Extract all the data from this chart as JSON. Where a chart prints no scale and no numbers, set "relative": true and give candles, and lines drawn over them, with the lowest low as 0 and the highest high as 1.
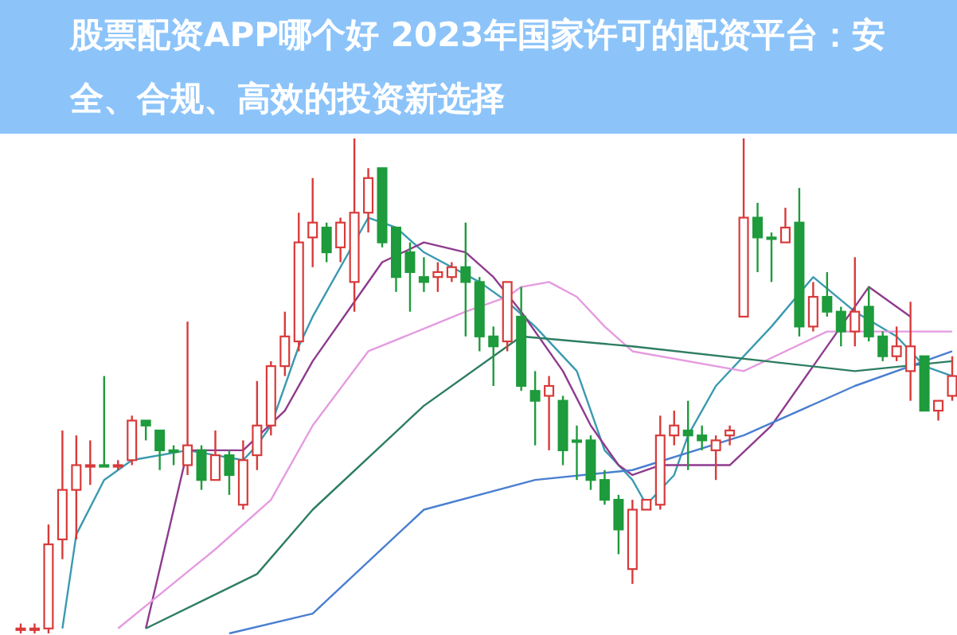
{
  "chart_data": {
    "type": "candlestick",
    "title": "股票配资APP哪个好 2023年国家许可的配资平台：安全、合规、高效的投资新选择",
    "relative": true,
    "categories": [
      null,
      null,
      null,
      null,
      null,
      null,
      null,
      null,
      null,
      null,
      null,
      null,
      null,
      null,
      null,
      null,
      null,
      null,
      null,
      null,
      null,
      null,
      null,
      null,
      null,
      null,
      null,
      null,
      null,
      null,
      null,
      null,
      null,
      null,
      null,
      null,
      null,
      null,
      null,
      null,
      null,
      null,
      null,
      null,
      null,
      null,
      null,
      null,
      null,
      null,
      null,
      null,
      null,
      null,
      null,
      null,
      null,
      null,
      null,
      null,
      null,
      null,
      null,
      null,
      null,
      null,
      null,
      null
    ],
    "ohlc": [
      [
        0.01,
        0.02,
        0,
        0.01
      ],
      [
        0.01,
        0.02,
        0,
        0.01
      ],
      [
        0.01,
        0.22,
        0,
        0.18
      ],
      [
        0.19,
        0.41,
        0.15,
        0.29
      ],
      [
        0.29,
        0.4,
        0.19,
        0.34
      ],
      [
        0.34,
        0.39,
        0.3,
        0.34
      ],
      [
        0.34,
        0.52,
        0.34,
        0.34
      ],
      [
        0.34,
        0.35,
        0.33,
        0.34
      ],
      [
        0.35,
        0.44,
        0.34,
        0.43
      ],
      [
        0.43,
        0.43,
        0.39,
        0.42
      ],
      [
        0.41,
        0.41,
        0.33,
        0.37
      ],
      [
        0.37,
        0.38,
        0.34,
        0.37
      ],
      [
        0.34,
        0.63,
        0.32,
        0.38
      ],
      [
        0.37,
        0.38,
        0.29,
        0.31
      ],
      [
        0.31,
        0.41,
        0.31,
        0.36
      ],
      [
        0.36,
        0.37,
        0.28,
        0.32
      ],
      [
        0.26,
        0.39,
        0.25,
        0.35
      ],
      [
        0.36,
        0.51,
        0.33,
        0.42
      ],
      [
        0.42,
        0.55,
        0.4,
        0.54
      ],
      [
        0.54,
        0.65,
        0.52,
        0.6
      ],
      [
        0.59,
        0.85,
        0.57,
        0.79
      ],
      [
        0.8,
        0.92,
        0.74,
        0.83
      ],
      [
        0.82,
        0.83,
        0.75,
        0.77
      ],
      [
        0.78,
        0.84,
        0.75,
        0.83
      ],
      [
        0.71,
        1,
        0.65,
        0.85
      ],
      [
        0.85,
        0.94,
        0.81,
        0.92
      ],
      [
        0.94,
        0.94,
        0.78,
        0.79
      ],
      [
        0.82,
        0.82,
        0.69,
        0.72
      ],
      [
        0.77,
        0.79,
        0.65,
        0.73
      ],
      [
        0.72,
        0.76,
        0.69,
        0.71
      ],
      [
        0.72,
        0.75,
        0.69,
        0.73
      ],
      [
        0.72,
        0.75,
        0.71,
        0.74
      ],
      [
        0.74,
        0.83,
        0.6,
        0.71
      ],
      [
        0.71,
        0.72,
        0.57,
        0.6
      ],
      [
        0.6,
        0.62,
        0.5,
        0.58
      ],
      [
        0.59,
        0.71,
        0.57,
        0.71
      ],
      [
        0.64,
        0.7,
        0.49,
        0.5
      ],
      [
        0.49,
        0.53,
        0.38,
        0.47
      ],
      [
        0.48,
        0.52,
        0.37,
        0.5
      ],
      [
        0.47,
        0.48,
        0.34,
        0.37
      ],
      [
        0.39,
        0.42,
        0.31,
        0.39
      ],
      [
        0.39,
        0.4,
        0.29,
        0.31
      ],
      [
        0.31,
        0.33,
        0.26,
        0.27
      ],
      [
        0.27,
        0.28,
        0.16,
        0.21
      ],
      [
        0.13,
        0.27,
        0.1,
        0.25
      ],
      [
        0.25,
        0.27,
        0.25,
        0.27
      ],
      [
        0.26,
        0.44,
        0.25,
        0.4
      ],
      [
        0.4,
        0.45,
        0.38,
        0.42
      ],
      [
        0.41,
        0.47,
        0.33,
        0.4
      ],
      [
        0.4,
        0.42,
        0.37,
        0.39
      ],
      [
        0.37,
        0.4,
        0.31,
        0.39
      ],
      [
        0.4,
        0.42,
        0.38,
        0.41
      ],
      [
        0.64,
        1,
        0.64,
        0.84
      ],
      [
        0.84,
        0.87,
        0.73,
        0.8
      ],
      [
        0.8,
        0.81,
        0.71,
        0.8
      ],
      [
        0.79,
        0.86,
        0.79,
        0.82
      ],
      [
        0.83,
        0.9,
        0.6,
        0.62
      ],
      [
        0.62,
        0.71,
        0.61,
        0.68
      ],
      [
        0.68,
        0.73,
        0.64,
        0.65
      ],
      [
        0.65,
        0.66,
        0.58,
        0.61
      ],
      [
        0.61,
        0.76,
        0.58,
        0.65
      ],
      [
        0.66,
        0.7,
        0.59,
        0.6
      ],
      [
        0.6,
        0.61,
        0.55,
        0.56
      ],
      [
        0.56,
        0.62,
        0.55,
        0.58
      ],
      [
        0.53,
        0.67,
        0.47,
        0.58
      ],
      [
        0.56,
        0.56,
        0.45,
        0.45
      ],
      [
        0.45,
        0.47,
        0.43,
        0.47
      ],
      [
        0.48,
        0.56,
        0.47,
        0.52
      ]
    ],
    "colors": [
      "#d83a3a",
      "#d83a3a",
      "#d83a3a",
      "#d83a3a",
      "#d83a3a",
      "#d83a3a",
      "#1e9b3c",
      "#d83a3a",
      "#d83a3a",
      "#1e9b3c",
      "#1e9b3c",
      "#1e9b3c",
      "#d83a3a",
      "#1e9b3c",
      "#d83a3a",
      "#1e9b3c",
      "#d83a3a",
      "#d83a3a",
      "#d83a3a",
      "#d83a3a",
      "#d83a3a",
      "#d83a3a",
      "#1e9b3c",
      "#d83a3a",
      "#d83a3a",
      "#d83a3a",
      "#1e9b3c",
      "#1e9b3c",
      "#1e9b3c",
      "#1e9b3c",
      "#d83a3a",
      "#d83a3a",
      "#1e9b3c",
      "#1e9b3c",
      "#1e9b3c",
      "#d83a3a",
      "#1e9b3c",
      "#1e9b3c",
      "#d83a3a",
      "#1e9b3c",
      "#1e9b3c",
      "#1e9b3c",
      "#1e9b3c",
      "#1e9b3c",
      "#d83a3a",
      "#d83a3a",
      "#d83a3a",
      "#d83a3a",
      "#1e9b3c",
      "#1e9b3c",
      "#d83a3a",
      "#d83a3a",
      "#d83a3a",
      "#1e9b3c",
      "#1e9b3c",
      "#d83a3a",
      "#1e9b3c",
      "#d83a3a",
      "#1e9b3c",
      "#1e9b3c",
      "#d83a3a",
      "#1e9b3c",
      "#1e9b3c",
      "#d83a3a",
      "#d83a3a",
      "#1e9b3c",
      "#d83a3a",
      "#d83a3a"
    ],
    "series": [
      {
        "type": "line",
        "color": "#3a9ab0",
        "values": [
          null,
          null,
          null,
          0.01,
          0.2,
          null,
          0.31,
          null,
          0.35,
          null,
          null,
          null,
          0.37,
          null,
          null,
          null,
          0.35,
          0.38,
          0.42,
          null,
          0.58,
          0.64,
          null,
          null,
          null,
          0.84,
          null,
          0.82,
          null,
          0.77,
          null,
          null,
          null,
          0.71,
          null,
          0.67,
          null,
          0.62,
          null,
          null,
          0.53,
          null,
          0.37,
          null,
          0.31,
          0.26,
          null,
          0.32,
          0.4,
          null,
          0.5,
          null,
          null,
          null,
          0.62,
          null,
          null,
          0.72,
          null,
          null,
          0.65,
          null,
          null,
          0.6,
          null,
          0.54,
          null,
          0.52
        ]
      },
      {
        "type": "line",
        "color": "#8e3b8e",
        "values": [
          null,
          null,
          null,
          null,
          null,
          null,
          null,
          null,
          null,
          0.01,
          null,
          null,
          0.37,
          null,
          null,
          null,
          0.37,
          null,
          null,
          0.45,
          null,
          0.55,
          null,
          null,
          0.67,
          null,
          0.75,
          null,
          null,
          0.79,
          null,
          null,
          0.77,
          null,
          0.72,
          null,
          0.65,
          null,
          null,
          0.53,
          null,
          0.42,
          null,
          0.34,
          0.32,
          null,
          0.34,
          null,
          null,
          null,
          null,
          0.34,
          null,
          null,
          0.42,
          null,
          null,
          null,
          null,
          null,
          null,
          0.7,
          null,
          null,
          0.64,
          null,
          null,
          null
        ]
      },
      {
        "type": "line",
        "color": "#e59be0",
        "values": [
          null,
          null,
          null,
          null,
          null,
          null,
          null,
          0.01,
          null,
          null,
          null,
          null,
          null,
          null,
          0.17,
          null,
          null,
          null,
          0.27,
          null,
          null,
          0.42,
          null,
          null,
          null,
          0.57,
          null,
          null,
          null,
          null,
          null,
          null,
          0.65,
          null,
          null,
          0.68,
          0.7,
          null,
          0.71,
          null,
          0.68,
          null,
          0.62,
          null,
          0.57,
          null,
          null,
          null,
          null,
          null,
          null,
          null,
          0.53,
          null,
          null,
          null,
          null,
          null,
          0.61,
          null,
          null,
          null,
          null,
          null,
          null,
          null,
          null,
          0.61
        ]
      },
      {
        "type": "line",
        "color": "#2e7d62",
        "values": [
          null,
          null,
          null,
          null,
          null,
          null,
          null,
          null,
          null,
          0.01,
          null,
          null,
          null,
          null,
          null,
          null,
          null,
          0.12,
          null,
          null,
          null,
          0.25,
          null,
          null,
          null,
          null,
          null,
          null,
          null,
          0.46,
          null,
          null,
          null,
          null,
          null,
          null,
          0.6,
          null,
          null,
          null,
          null,
          null,
          null,
          null,
          0.58,
          null,
          null,
          null,
          null,
          null,
          null,
          null,
          null,
          null,
          null,
          null,
          null,
          null,
          null,
          null,
          0.53,
          null,
          null,
          null,
          null,
          null,
          null,
          0.55
        ]
      },
      {
        "type": "line",
        "color": "#4a7fd0",
        "values": [
          null,
          null,
          null,
          null,
          null,
          null,
          null,
          null,
          null,
          null,
          null,
          null,
          null,
          null,
          null,
          0.0,
          null,
          null,
          null,
          null,
          null,
          0.04,
          null,
          null,
          null,
          null,
          null,
          null,
          null,
          0.25,
          null,
          null,
          null,
          null,
          null,
          null,
          null,
          0.31,
          null,
          null,
          null,
          null,
          null,
          null,
          0.33,
          null,
          null,
          null,
          null,
          null,
          null,
          null,
          0.4,
          null,
          null,
          null,
          null,
          null,
          null,
          null,
          0.5,
          null,
          null,
          null,
          null,
          null,
          null,
          0.57
        ]
      }
    ]
  }
}
